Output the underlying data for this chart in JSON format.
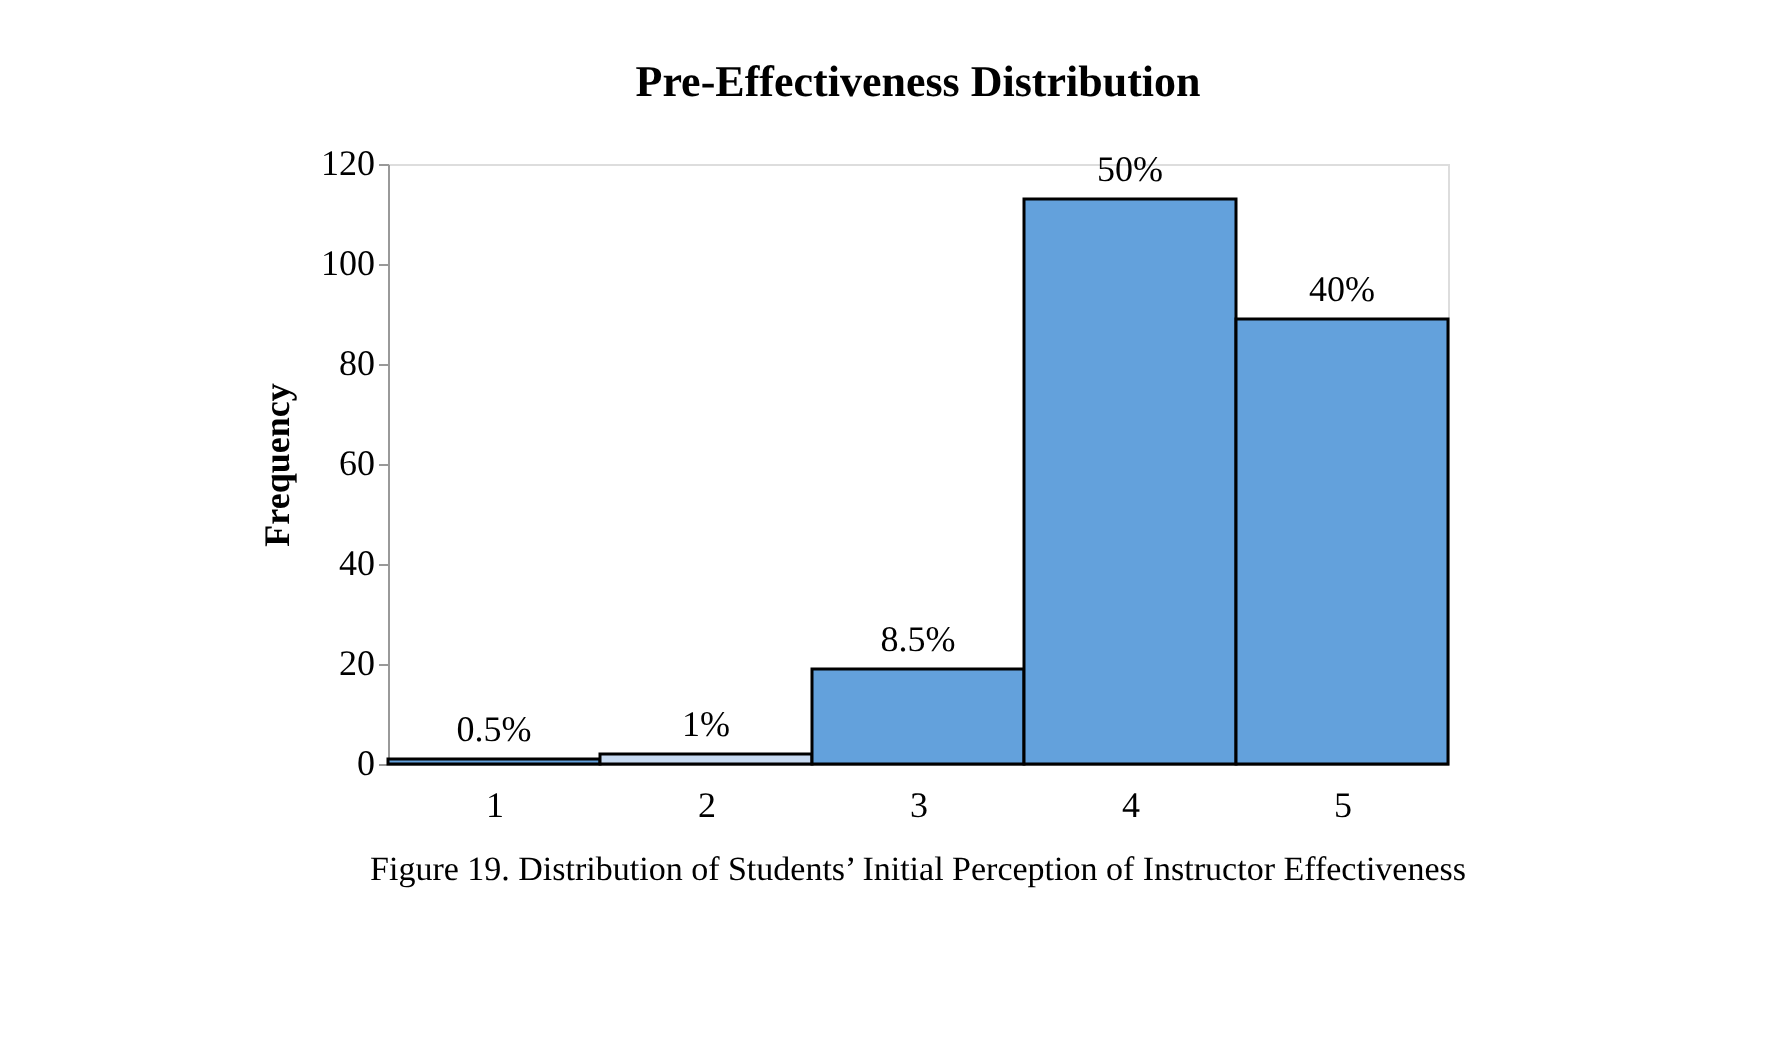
{
  "chart_data": {
    "type": "bar",
    "title": "Pre-Effectiveness Distribution",
    "ylabel": "Frequency",
    "categories": [
      "1",
      "2",
      "3",
      "4",
      "5"
    ],
    "values": [
      1,
      2,
      19,
      113,
      89
    ],
    "colors": [
      "#63a1dc",
      "#c6d9f1",
      "#63a1dc",
      "#63a1dc",
      "#63a1dc"
    ],
    "ylim": [
      0,
      120
    ],
    "yticks": [
      0,
      20,
      40,
      60,
      80,
      100,
      120
    ],
    "grid": false,
    "annotations": [
      "0.5%",
      "1%",
      "8.5%",
      "50%",
      "40%",
      "Figure 19.  Distribution of Students’ Initial Perception of Instructor Effectiveness"
    ]
  }
}
